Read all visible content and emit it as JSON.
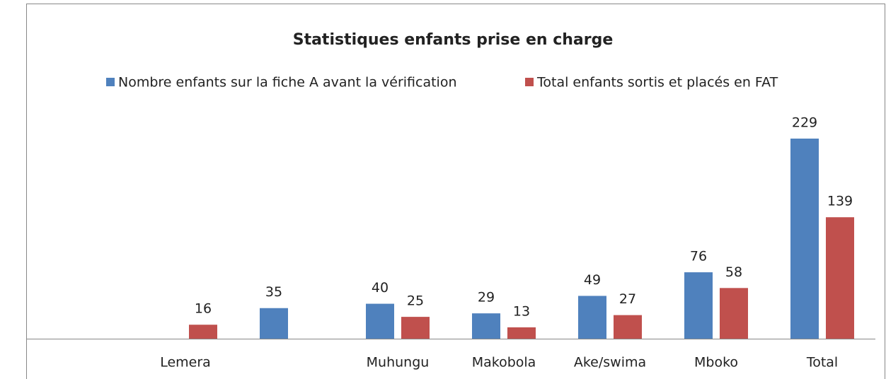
{
  "chart_data": {
    "type": "bar",
    "title": "Statistiques enfants  prise en charge",
    "categories": [
      null,
      "Lemera",
      null,
      "Muhungu",
      "Makobola",
      "Ake/swima",
      "Mboko",
      "Total"
    ],
    "series": [
      {
        "name": "Nombre enfants sur la fiche A avant la vérification",
        "color": "#4f81bd",
        "values": [
          null,
          null,
          35,
          40,
          29,
          49,
          76,
          229
        ]
      },
      {
        "name": "Total enfants sortis et placés en FAT",
        "color": "#c0504d",
        "values": [
          null,
          16,
          null,
          25,
          13,
          27,
          58,
          139
        ]
      }
    ],
    "legend": "top"
  }
}
